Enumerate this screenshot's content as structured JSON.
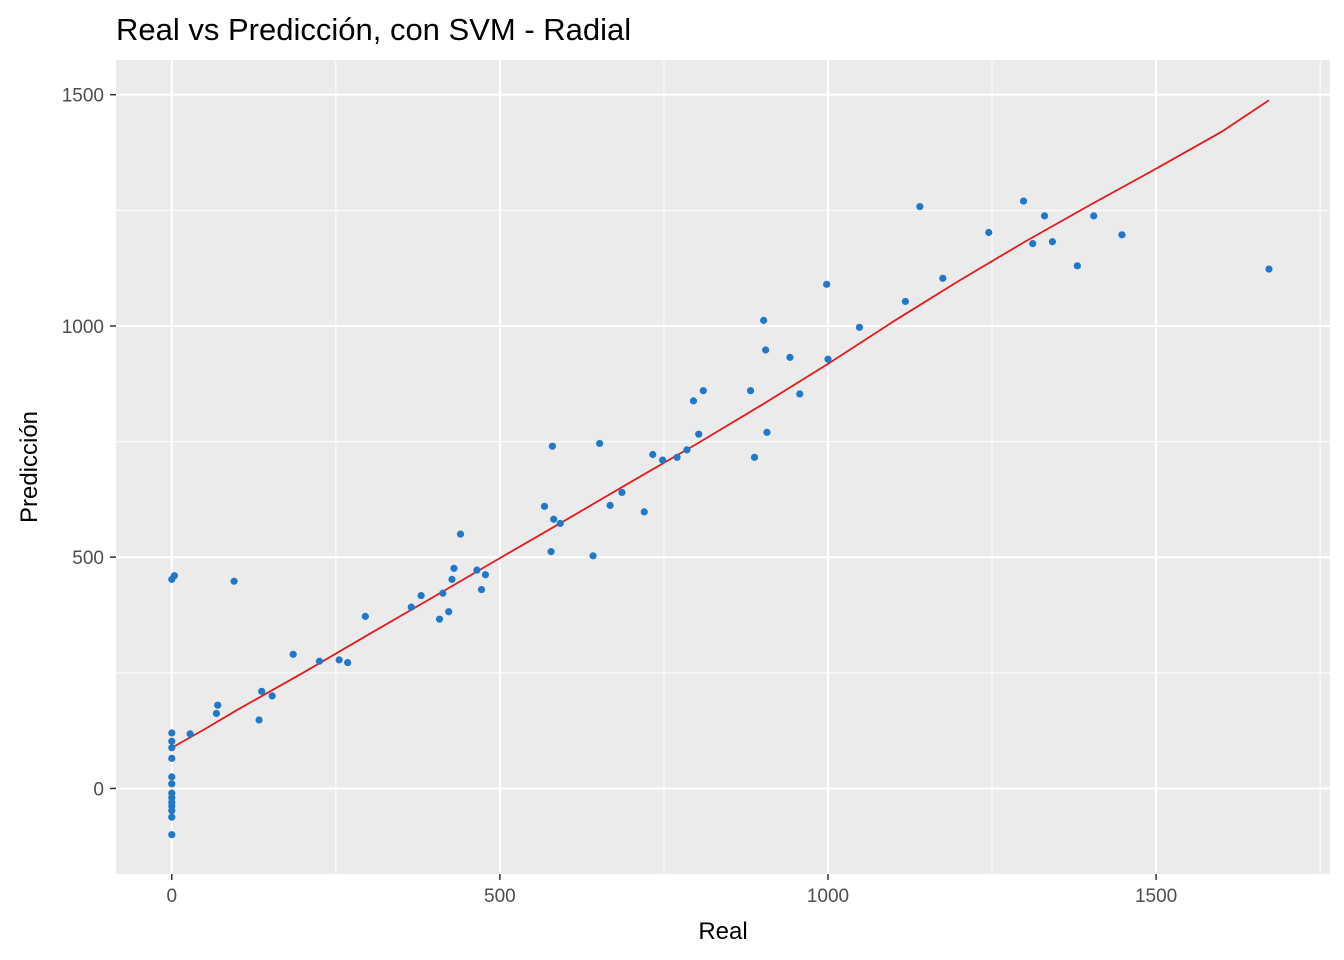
{
  "chart_data": {
    "type": "scatter",
    "title": "Real vs Predicción, con SVM - Radial",
    "xlabel": "Real",
    "ylabel": "Predicción",
    "xlim": [
      -85,
      1765
    ],
    "ylim": [
      -185,
      1575
    ],
    "xticks": [
      0,
      500,
      1000,
      1500
    ],
    "yticks": [
      0,
      500,
      1000,
      1500
    ],
    "xtick_labels": [
      "0",
      "500",
      "1000",
      "1500"
    ],
    "ytick_labels": [
      "0",
      "500",
      "1000",
      "1500"
    ],
    "grid": true,
    "background_color": "#ebebeb",
    "grid_color": "#ffffff",
    "point_color": "#1f78c8",
    "line_color": "#e41a1c",
    "legend": "none",
    "points": [
      {
        "x": 0,
        "y": -100
      },
      {
        "x": 0,
        "y": -62
      },
      {
        "x": 0,
        "y": -48
      },
      {
        "x": 0,
        "y": -38
      },
      {
        "x": 0,
        "y": -30
      },
      {
        "x": 0,
        "y": -20
      },
      {
        "x": 0,
        "y": -10
      },
      {
        "x": 0,
        "y": 10
      },
      {
        "x": 0,
        "y": 25
      },
      {
        "x": 0,
        "y": 65
      },
      {
        "x": 0,
        "y": 88
      },
      {
        "x": 0,
        "y": 102
      },
      {
        "x": 0,
        "y": 120
      },
      {
        "x": 0,
        "y": 452
      },
      {
        "x": 4,
        "y": 460
      },
      {
        "x": 28,
        "y": 118
      },
      {
        "x": 68,
        "y": 162
      },
      {
        "x": 70,
        "y": 180
      },
      {
        "x": 95,
        "y": 448
      },
      {
        "x": 133,
        "y": 148
      },
      {
        "x": 137,
        "y": 210
      },
      {
        "x": 153,
        "y": 200
      },
      {
        "x": 185,
        "y": 290
      },
      {
        "x": 225,
        "y": 275
      },
      {
        "x": 255,
        "y": 278
      },
      {
        "x": 268,
        "y": 272
      },
      {
        "x": 295,
        "y": 372
      },
      {
        "x": 365,
        "y": 392
      },
      {
        "x": 380,
        "y": 417
      },
      {
        "x": 408,
        "y": 366
      },
      {
        "x": 413,
        "y": 422
      },
      {
        "x": 422,
        "y": 382
      },
      {
        "x": 427,
        "y": 452
      },
      {
        "x": 430,
        "y": 476
      },
      {
        "x": 440,
        "y": 550
      },
      {
        "x": 465,
        "y": 472
      },
      {
        "x": 472,
        "y": 430
      },
      {
        "x": 478,
        "y": 462
      },
      {
        "x": 568,
        "y": 610
      },
      {
        "x": 578,
        "y": 512
      },
      {
        "x": 580,
        "y": 740
      },
      {
        "x": 582,
        "y": 582
      },
      {
        "x": 592,
        "y": 573
      },
      {
        "x": 642,
        "y": 503
      },
      {
        "x": 652,
        "y": 746
      },
      {
        "x": 668,
        "y": 612
      },
      {
        "x": 686,
        "y": 640
      },
      {
        "x": 720,
        "y": 598
      },
      {
        "x": 733,
        "y": 722
      },
      {
        "x": 748,
        "y": 710
      },
      {
        "x": 770,
        "y": 716
      },
      {
        "x": 785,
        "y": 732
      },
      {
        "x": 795,
        "y": 838
      },
      {
        "x": 803,
        "y": 766
      },
      {
        "x": 810,
        "y": 860
      },
      {
        "x": 882,
        "y": 860
      },
      {
        "x": 888,
        "y": 716
      },
      {
        "x": 902,
        "y": 1012
      },
      {
        "x": 905,
        "y": 948
      },
      {
        "x": 907,
        "y": 770
      },
      {
        "x": 942,
        "y": 932
      },
      {
        "x": 957,
        "y": 853
      },
      {
        "x": 998,
        "y": 1090
      },
      {
        "x": 1000,
        "y": 928
      },
      {
        "x": 1048,
        "y": 997
      },
      {
        "x": 1118,
        "y": 1053
      },
      {
        "x": 1140,
        "y": 1258
      },
      {
        "x": 1175,
        "y": 1103
      },
      {
        "x": 1245,
        "y": 1202
      },
      {
        "x": 1298,
        "y": 1270
      },
      {
        "x": 1312,
        "y": 1178
      },
      {
        "x": 1330,
        "y": 1238
      },
      {
        "x": 1342,
        "y": 1182
      },
      {
        "x": 1380,
        "y": 1130
      },
      {
        "x": 1405,
        "y": 1238
      },
      {
        "x": 1448,
        "y": 1197
      },
      {
        "x": 1672,
        "y": 1123
      }
    ],
    "fit_line": {
      "x": [
        0,
        50,
        100,
        200,
        300,
        400,
        500,
        600,
        700,
        800,
        900,
        1000,
        1100,
        1200,
        1300,
        1400,
        1500,
        1600,
        1672
      ],
      "y": [
        88,
        128,
        170,
        250,
        333,
        415,
        498,
        580,
        663,
        745,
        830,
        918,
        1010,
        1098,
        1182,
        1262,
        1340,
        1420,
        1488
      ]
    }
  }
}
